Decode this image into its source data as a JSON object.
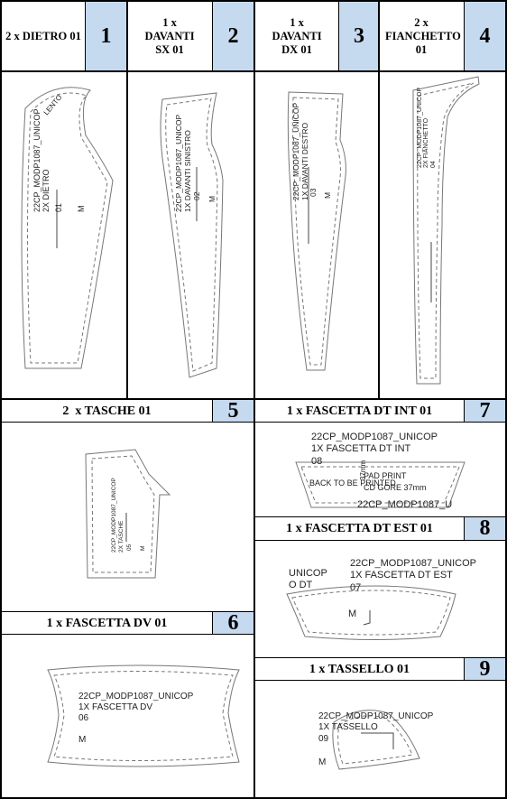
{
  "pieces": [
    {
      "id": "1",
      "header": "2 x DIETRO 01",
      "labels": [
        "22CP_MODP1087_UNICOP",
        "2X DIETRO",
        "01",
        "M",
        "LENTO"
      ]
    },
    {
      "id": "2",
      "header": "1 x DAVANTI SX 01",
      "labels": [
        "22CP_MODP1087_UNICOP",
        "1X DAVANTI SINISTRO",
        "02",
        "M"
      ]
    },
    {
      "id": "3",
      "header": "1 x DAVANTI DX 01",
      "labels": [
        "22CP_MODP1087_UNICOP",
        "1X DAVANTI DESTRO",
        "03",
        "M"
      ]
    },
    {
      "id": "4",
      "header": "2 x FIANCHETTO 01",
      "labels": [
        "22CP_MODP1087_UNICOP",
        "2X FIANCHETTO",
        "04"
      ]
    },
    {
      "id": "5",
      "header": "2  x TASCHE 01",
      "labels": [
        "22CP_MODP1087_UNICOP",
        "2X TASCHE",
        "05",
        "M"
      ]
    },
    {
      "id": "6",
      "header": "1 x FASCETTA DV 01",
      "labels": [
        "22CP_MODP1087_UNICOP",
        "1X FASCETTA DV",
        "06",
        "M"
      ]
    },
    {
      "id": "7",
      "header": "1 x FASCETTA DT INT 01",
      "labels": [
        "22CP_MODP1087_UNICOP",
        "1X FASCETTA DT INT",
        "08",
        "BACK TO BE PRINTED",
        "PAD PRINT",
        "CD GORE 37mm",
        "37mm",
        "22CP_MODP1087_U"
      ]
    },
    {
      "id": "8",
      "header": "1 x FASCETTA DT EST 01",
      "labels": [
        "22CP_MODP1087_UNICOP",
        "1X FASCETTA DT EST",
        "07",
        "M",
        "UNICOP",
        "O DT"
      ]
    },
    {
      "id": "9",
      "header": "1 x TASSELLO 01",
      "labels": [
        "22CP_MODP1087_UNICOP",
        "1X TASSELLO",
        "09",
        "M"
      ]
    }
  ]
}
